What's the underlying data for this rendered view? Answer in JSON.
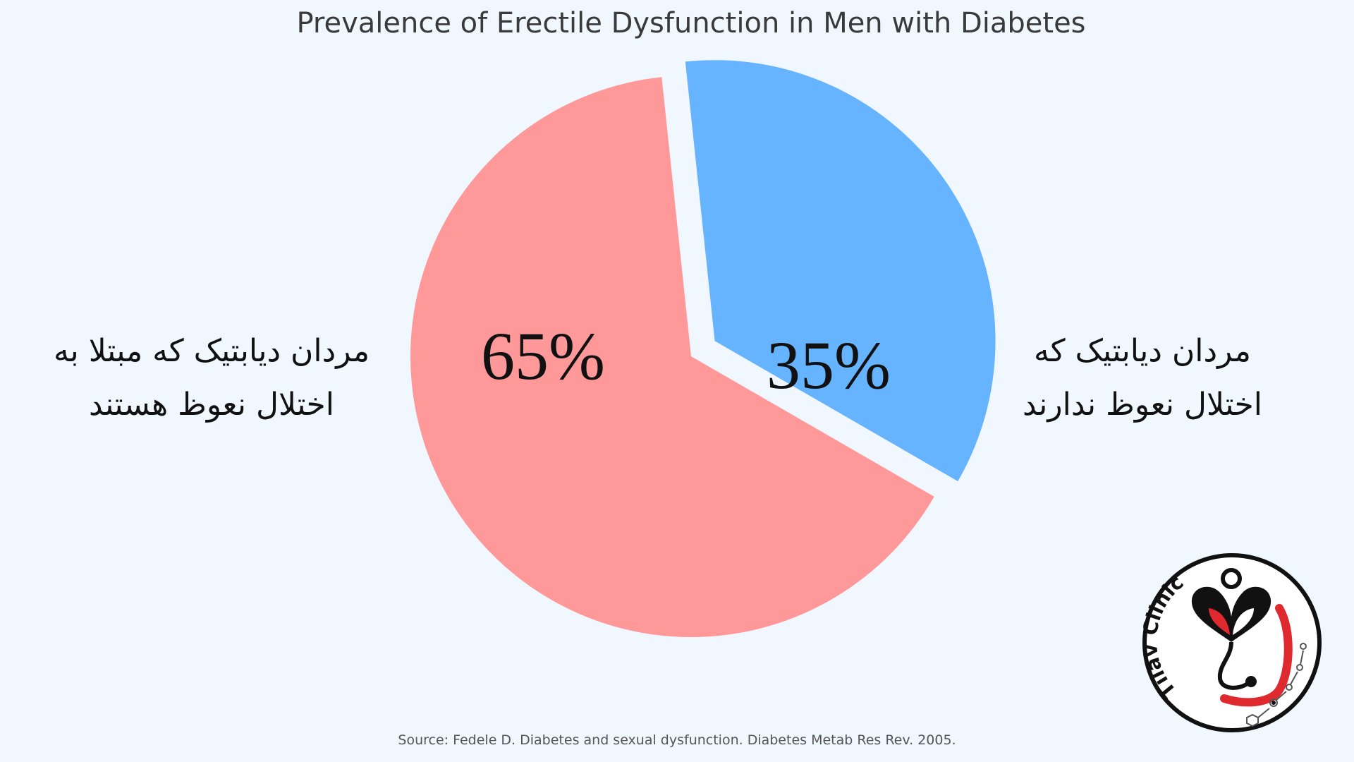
{
  "chart_data": {
    "type": "pie",
    "title": "Prevalence of Erectile Dysfunction in Men with Diabetes",
    "slices": [
      {
        "label": "مردان دیابتیک که مبتلا به\nاختلال نعوظ هستند",
        "value": 65,
        "value_label": "65%",
        "color": "#ff9999",
        "exploded": false
      },
      {
        "label": "مردان دیابتیک که\nاختلال نعوظ ندارند",
        "value": 35,
        "value_label": "35%",
        "color": "#66b3ff",
        "exploded": true
      }
    ],
    "legend": "none"
  },
  "source_note": "Source: Fedele D. Diabetes and sexual dysfunction. Diabetes Metab Res Rev. 2005.",
  "logo": {
    "text": "Tilav Clinic",
    "icon": "clinic-logo-icon",
    "colors": {
      "ring": "#111111",
      "accent": "#e0282f"
    }
  },
  "colors": {
    "background": "#f0f7ff"
  }
}
